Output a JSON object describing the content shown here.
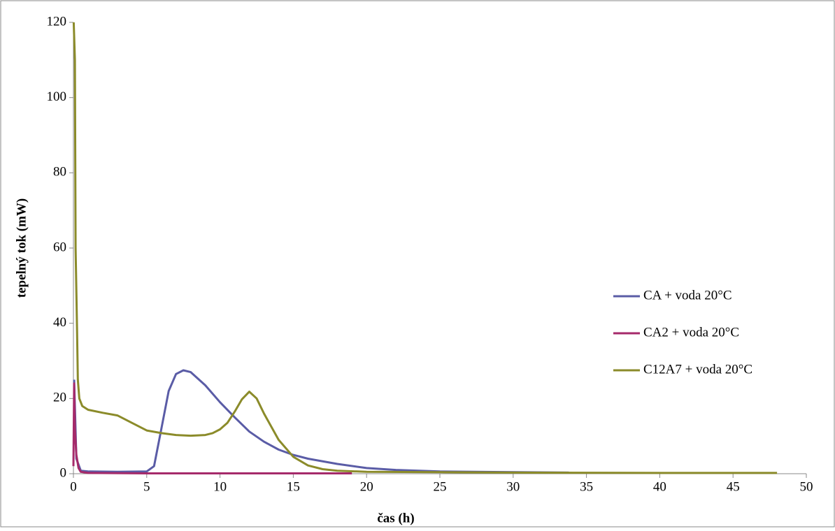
{
  "chart_data": {
    "type": "line",
    "x_label": "čas (h)",
    "y_label": "tepelný tok (mW)",
    "xlim": [
      0,
      50
    ],
    "xticks": [
      0,
      5,
      10,
      15,
      20,
      25,
      30,
      35,
      40,
      45,
      50
    ],
    "ylim": [
      0,
      120
    ],
    "yticks": [
      0,
      20,
      40,
      60,
      80,
      100,
      120
    ],
    "grid": false,
    "legend": "right",
    "series": [
      {
        "name": "CA + voda 20°C",
        "color": "#5a5ca6",
        "x": [
          0.05,
          0.2,
          0.5,
          1,
          3,
          5,
          5.5,
          6,
          6.5,
          7,
          7.5,
          8,
          9,
          10,
          11,
          12,
          13,
          14,
          15,
          16,
          18,
          20,
          22,
          25,
          30,
          33.8
        ],
        "values": [
          25,
          4,
          0.8,
          0.6,
          0.5,
          0.6,
          2,
          12,
          22,
          26.5,
          27.5,
          27,
          23.5,
          19,
          15,
          11.2,
          8.5,
          6.4,
          5,
          4,
          2.6,
          1.5,
          1,
          0.6,
          0.4,
          0.3
        ]
      },
      {
        "name": "CA2 + voda 20°C",
        "color": "#a52a6a",
        "x": [
          0,
          0.05,
          0.1,
          0.2,
          0.35,
          0.5,
          1,
          5,
          10,
          19
        ],
        "values": [
          2,
          24,
          12,
          5,
          1.5,
          0.5,
          0.2,
          0.1,
          0.1,
          0.1
        ]
      },
      {
        "name": "C12A7 + voda 20°C",
        "color": "#8b8b2a",
        "x": [
          0.02,
          0.1,
          0.15,
          0.25,
          0.3,
          0.4,
          0.6,
          1,
          2,
          3,
          4,
          5,
          6,
          7,
          8,
          9,
          9.5,
          10,
          10.5,
          11,
          11.5,
          12,
          12.5,
          13,
          14,
          15,
          16,
          17,
          18,
          20,
          25,
          30,
          40,
          48
        ],
        "values": [
          120,
          110,
          60,
          38,
          25,
          20,
          18,
          17,
          16.2,
          15.5,
          13.5,
          11.5,
          10.8,
          10.3,
          10.1,
          10.3,
          10.8,
          11.8,
          13.5,
          16.5,
          19.8,
          21.8,
          20,
          16,
          9,
          4.5,
          2.2,
          1.2,
          0.8,
          0.5,
          0.4,
          0.3,
          0.2,
          0.2
        ]
      }
    ]
  }
}
